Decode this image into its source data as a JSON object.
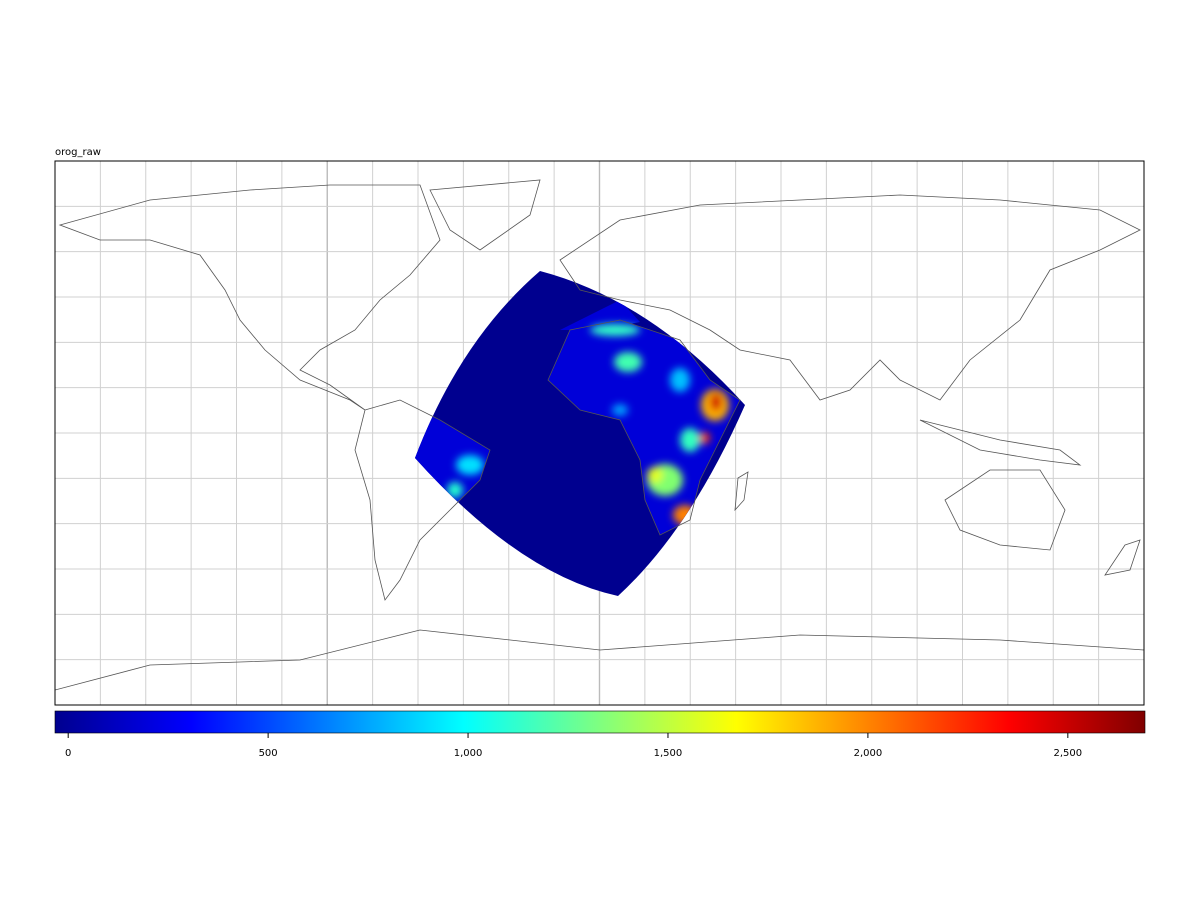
{
  "chart_data": {
    "type": "map",
    "title": "orog_raw",
    "colormap": "jet",
    "clim": [
      -33,
      2693
    ],
    "cticks": [
      0,
      500,
      {
        "value": 1000,
        "label": "1,000"
      },
      {
        "value": 1500,
        "label": "1,500"
      },
      {
        "value": 2000,
        "label": "2,000"
      },
      {
        "value": 2500,
        "label": "2,500"
      }
    ]
  }
}
